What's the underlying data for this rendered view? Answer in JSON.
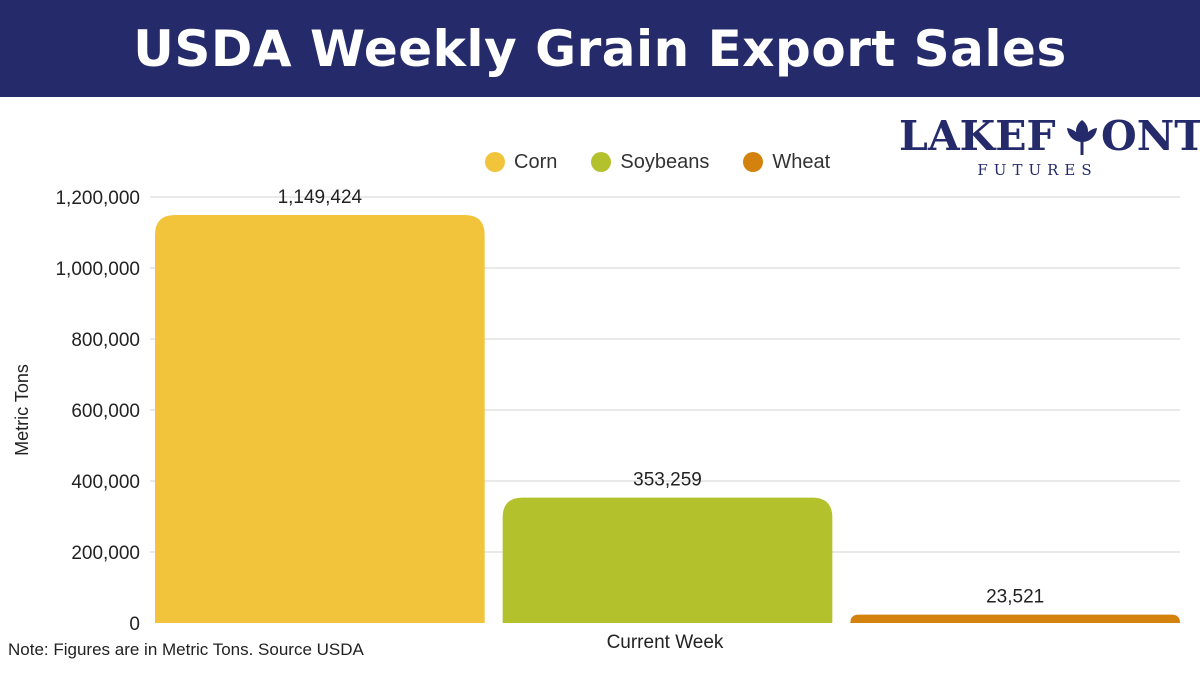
{
  "header": {
    "title": "USDA Weekly Grain Export Sales"
  },
  "logo": {
    "name": "LAKEFRONT",
    "name_left": "LAKEF",
    "name_right": "ONT",
    "subtitle": "FUTURES"
  },
  "note": "Note: Figures are in Metric Tons. Source USDA",
  "colors": {
    "header_bg": "#252a6b",
    "corn": "#f2c43c",
    "soybeans": "#b3c22c",
    "wheat": "#d4820e"
  },
  "chart_data": {
    "type": "bar",
    "title": "USDA Weekly Grain Export Sales",
    "categories": [
      "Current Week"
    ],
    "series": [
      {
        "name": "Corn",
        "values": [
          1149424
        ],
        "label": "1,149,424",
        "color": "#f2c43c"
      },
      {
        "name": "Soybeans",
        "values": [
          353259
        ],
        "label": "353,259",
        "color": "#b3c22c"
      },
      {
        "name": "Wheat",
        "values": [
          23521
        ],
        "label": "23,521",
        "color": "#d4820e"
      }
    ],
    "xlabel": "",
    "ylabel": "Metric Tons",
    "ylim": [
      0,
      1200000
    ],
    "yticks": [
      0,
      200000,
      400000,
      600000,
      800000,
      1000000,
      1200000
    ],
    "ytick_labels": [
      "0",
      "200,000",
      "400,000",
      "600,000",
      "800,000",
      "1,000,000",
      "1,200,000"
    ],
    "grid": true,
    "legend": "top-center"
  }
}
